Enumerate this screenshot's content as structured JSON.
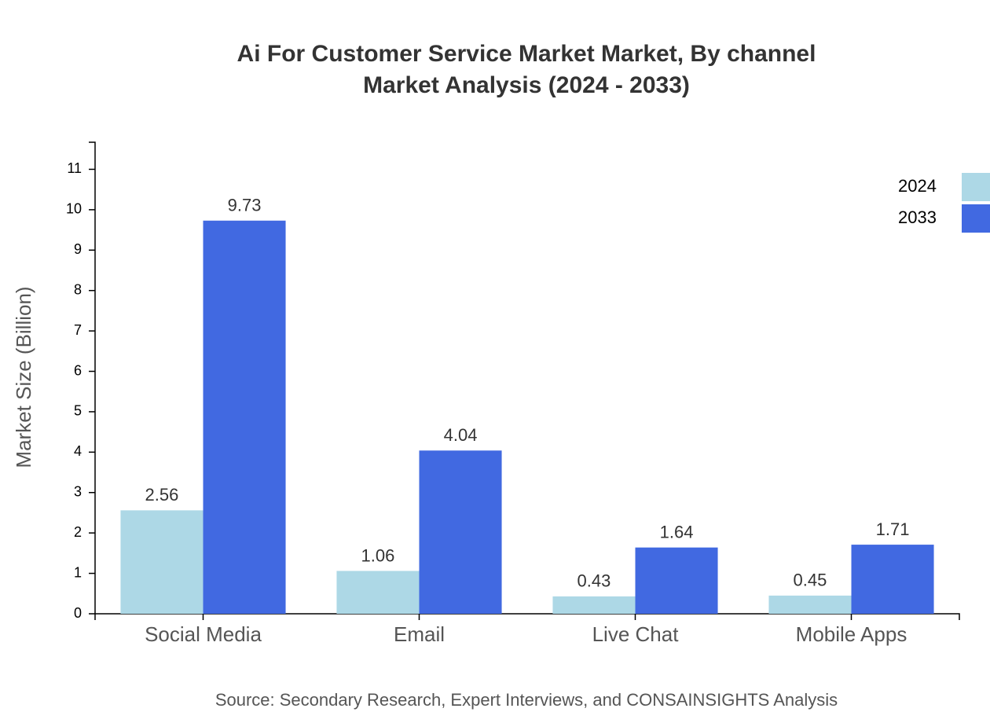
{
  "chart_data": {
    "type": "bar",
    "title": "Ai For Customer Service Market Market, By channel",
    "subtitle": "Market Analysis (2024 - 2033)",
    "y_label": "Market Size (Billion)",
    "source": "Source: Secondary Research, Expert Interviews, and CONSAINSIGHTS Analysis",
    "categories": [
      "Social Media",
      "Email",
      "Live Chat",
      "Mobile Apps"
    ],
    "series": [
      {
        "name": "2024",
        "color": "#add8e6",
        "values": [
          2.56,
          1.06,
          0.43,
          0.45
        ]
      },
      {
        "name": "2033",
        "color": "#4169e1",
        "values": [
          9.73,
          4.04,
          1.64,
          1.71
        ]
      }
    ],
    "ylim": [
      0,
      11.67
    ],
    "yticks": [
      0,
      1,
      2,
      3,
      4,
      5,
      6,
      7,
      8,
      9,
      10,
      11
    ],
    "legend": "top-right"
  }
}
